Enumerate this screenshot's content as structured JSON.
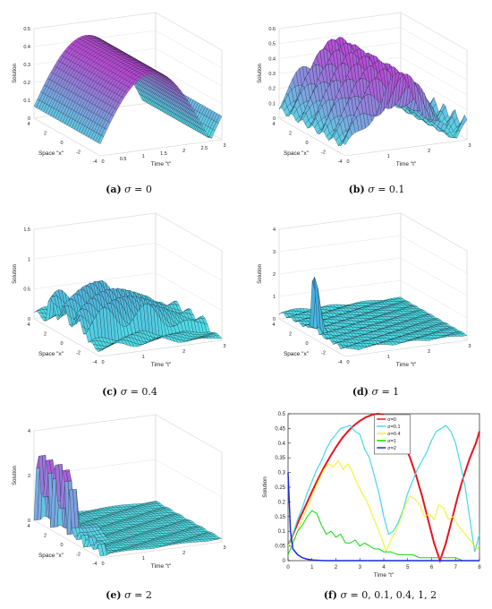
{
  "panels": [
    {
      "id": "a",
      "label": "(a)",
      "sigma": "σ",
      "eq": "= 0",
      "ylabel": "Solution",
      "xlabel": "Space \"x\"",
      "tlabel": "Time \"t\"",
      "zticks": [
        "0",
        "0.1",
        "0.2",
        "0.3",
        "0.4",
        "0.5"
      ],
      "xticks": [
        "4",
        "2",
        "0",
        "-2",
        "-4"
      ],
      "tticks": [
        "0",
        "0.5",
        "1",
        "1.5",
        "2",
        "2.5",
        "3"
      ],
      "top": "#b94ad6",
      "bottom": "#4ee6e8"
    },
    {
      "id": "b",
      "label": "(b)",
      "sigma": "σ",
      "eq": "= 0.1",
      "ylabel": "Solution",
      "xlabel": "Space \"x\"",
      "tlabel": "Time \"t\"",
      "zticks": [
        "0",
        "0.1",
        "0.2",
        "0.3",
        "0.4",
        "0.5",
        "0.6"
      ],
      "xticks": [
        "4",
        "2",
        "0",
        "-2",
        "-4"
      ],
      "tticks": [
        "0",
        "1",
        "2",
        "3"
      ],
      "top": "#b94ad6",
      "bottom": "#4ee6e8"
    },
    {
      "id": "c",
      "label": "(c)",
      "sigma": "σ",
      "eq": "= 0.4",
      "ylabel": "Solution",
      "xlabel": "Space \"x\"",
      "tlabel": "Time \"t\"",
      "zticks": [
        "0",
        "0.5",
        "1",
        "1.5"
      ],
      "xticks": [
        "4",
        "2",
        "0",
        "-2",
        "-4"
      ],
      "tticks": [
        "0",
        "1",
        "2",
        "3"
      ],
      "top": "#5a8ad6",
      "bottom": "#4ee6e8"
    },
    {
      "id": "d",
      "label": "(d)",
      "sigma": "σ",
      "eq": "= 1",
      "ylabel": "Solution",
      "xlabel": "Space \"x\"",
      "tlabel": "Time \"t\"",
      "zticks": [
        "0",
        "1",
        "2",
        "3",
        "4"
      ],
      "xticks": [
        "4",
        "2",
        "0",
        "-2",
        "-4"
      ],
      "tticks": [
        "0",
        "1",
        "2",
        "3"
      ],
      "top": "#3a6ad0",
      "bottom": "#4ee6e8"
    },
    {
      "id": "e",
      "label": "(e)",
      "sigma": "σ",
      "eq": "= 2",
      "ylabel": "Solution",
      "xlabel": "Space \"x\"",
      "tlabel": "Time \"t\"",
      "zticks": [
        "0",
        "2",
        "4"
      ],
      "xticks": [
        "4",
        "2",
        "0",
        "-2",
        "-4"
      ],
      "tticks": [
        "0",
        "1",
        "2",
        "3"
      ],
      "top": "#b94ad6",
      "bottom": "#4ee6e8"
    }
  ],
  "chart_data": {
    "type": "line",
    "label": "(f)",
    "sigma": "σ",
    "caption_eq": "= 0, 0.1, 0.4, 1, 2",
    "xlabel": "Time \"t\"",
    "ylabel": "Solution",
    "xlim": [
      0,
      8
    ],
    "ylim": [
      0,
      0.5
    ],
    "xticks": [
      0,
      1,
      2,
      3,
      4,
      5,
      6,
      7,
      8
    ],
    "yticks": [
      0,
      0.05,
      0.1,
      0.15,
      0.2,
      0.25,
      0.3,
      0.35,
      0.4,
      0.45,
      0.5
    ],
    "legend_position": "top-center",
    "series": [
      {
        "name": "σ=0",
        "color": "#e8141e",
        "width": 2,
        "x": [
          0,
          0.25,
          0.5,
          0.75,
          1,
          1.25,
          1.5,
          1.75,
          2,
          2.25,
          2.5,
          2.75,
          3,
          3.25,
          3.5,
          3.75,
          3.93,
          4.1,
          4.35,
          4.6,
          4.85,
          5.1,
          5.35,
          5.6,
          5.85,
          6.1,
          6.35,
          6.6,
          6.85,
          7.1,
          7.35,
          7.6,
          7.85,
          8
        ],
        "y": [
          0.05,
          0.098,
          0.146,
          0.19,
          0.235,
          0.277,
          0.317,
          0.353,
          0.386,
          0.416,
          0.44,
          0.46,
          0.476,
          0.488,
          0.496,
          0.5,
          0.498,
          0.49,
          0.47,
          0.44,
          0.4,
          0.35,
          0.29,
          0.22,
          0.14,
          0.06,
          0.0,
          0.06,
          0.14,
          0.22,
          0.29,
          0.35,
          0.4,
          0.44
        ]
      },
      {
        "name": "σ=0.1",
        "color": "#44d8ee",
        "width": 1.2,
        "x": [
          0,
          0.2,
          0.4,
          0.6,
          0.8,
          1,
          1.2,
          1.4,
          1.6,
          1.8,
          2,
          2.2,
          2.4,
          2.6,
          2.8,
          3,
          3.2,
          3.4,
          3.6,
          3.8,
          4,
          4.2,
          4.4,
          4.6,
          4.8,
          5,
          5.2,
          5.4,
          5.6,
          5.8,
          6,
          6.2,
          6.4,
          6.6,
          6.8,
          7,
          7.2,
          7.4,
          7.6,
          7.8,
          8
        ],
        "y": [
          0.05,
          0.09,
          0.14,
          0.18,
          0.23,
          0.27,
          0.31,
          0.34,
          0.38,
          0.41,
          0.43,
          0.45,
          0.455,
          0.46,
          0.44,
          0.43,
          0.38,
          0.35,
          0.29,
          0.23,
          0.15,
          0.09,
          0.1,
          0.13,
          0.17,
          0.23,
          0.27,
          0.31,
          0.34,
          0.37,
          0.41,
          0.44,
          0.45,
          0.46,
          0.44,
          0.4,
          0.33,
          0.25,
          0.14,
          0.03,
          0.09
        ]
      },
      {
        "name": "σ=0.4",
        "color": "#f2f020",
        "width": 1,
        "x": [
          0,
          0.3,
          0.6,
          0.9,
          1.2,
          1.5,
          1.7,
          1.9,
          2.1,
          2.3,
          2.5,
          2.7,
          2.9,
          3.1,
          3.3,
          3.5,
          3.7,
          3.9,
          4.1,
          4.3,
          4.5,
          4.7,
          4.9,
          5.1,
          5.3,
          5.5,
          5.7,
          5.9,
          6.1,
          6.3,
          6.5,
          6.7,
          6.9,
          7.1,
          7.3,
          7.5,
          7.7,
          7.9,
          8
        ],
        "y": [
          0.05,
          0.08,
          0.14,
          0.2,
          0.26,
          0.31,
          0.33,
          0.32,
          0.34,
          0.31,
          0.33,
          0.3,
          0.26,
          0.23,
          0.2,
          0.16,
          0.12,
          0.08,
          0.03,
          0.07,
          0.1,
          0.14,
          0.19,
          0.22,
          0.21,
          0.19,
          0.15,
          0.16,
          0.14,
          0.19,
          0.18,
          0.14,
          0.15,
          0.12,
          0.1,
          0.08,
          0.06,
          0.04,
          0.05
        ]
      },
      {
        "name": "σ=1",
        "color": "#10d80e",
        "width": 1,
        "x": [
          0,
          0.2,
          0.4,
          0.6,
          0.8,
          1,
          1.2,
          1.4,
          1.6,
          1.8,
          2,
          2.2,
          2.4,
          2.6,
          2.8,
          3,
          3.2,
          3.4,
          3.6,
          3.8,
          4,
          4.3,
          4.6,
          4.9,
          5.2,
          5.5,
          5.8,
          6.1,
          6.4,
          6.7,
          7,
          7.3,
          7.6,
          8
        ],
        "y": [
          0.02,
          0.06,
          0.1,
          0.12,
          0.15,
          0.17,
          0.16,
          0.12,
          0.09,
          0.1,
          0.08,
          0.09,
          0.06,
          0.06,
          0.07,
          0.05,
          0.06,
          0.05,
          0.04,
          0.04,
          0.03,
          0.03,
          0.02,
          0.02,
          0.02,
          0.01,
          0.01,
          0.01,
          0.01,
          0.01,
          0.01,
          0.0,
          0.0,
          0.0
        ]
      },
      {
        "name": "σ=2",
        "color": "#1a2ae0",
        "width": 1.5,
        "x": [
          0,
          0.1,
          0.2,
          0.4,
          0.6,
          0.8,
          1,
          1.5,
          2,
          3,
          4,
          5,
          6,
          7,
          8
        ],
        "y": [
          0.3,
          0.1,
          0.04,
          0.02,
          0.01,
          0.005,
          0.002,
          0.0,
          0.0,
          0.0,
          0.0,
          0.0,
          0.0,
          0.0,
          0.0
        ]
      }
    ]
  }
}
